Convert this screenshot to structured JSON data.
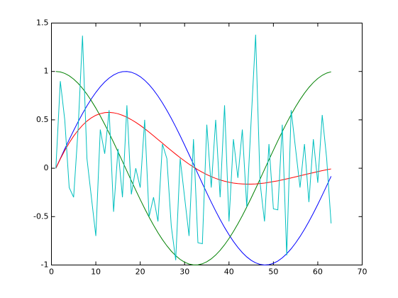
{
  "chart_data": {
    "type": "line",
    "x": [
      1,
      2,
      3,
      4,
      5,
      6,
      7,
      8,
      9,
      10,
      11,
      12,
      13,
      14,
      15,
      16,
      17,
      18,
      19,
      20,
      21,
      22,
      23,
      24,
      25,
      26,
      27,
      28,
      29,
      30,
      31,
      32,
      33,
      34,
      35,
      36,
      37,
      38,
      39,
      40,
      41,
      42,
      43,
      44,
      45,
      46,
      47,
      48,
      49,
      50,
      51,
      52,
      53,
      54,
      55,
      56,
      57,
      58,
      59,
      60,
      61,
      62,
      63
    ],
    "series": [
      {
        "color": "#0000ff",
        "values": [
          0,
          0.0998,
          0.1987,
          0.2955,
          0.3894,
          0.4794,
          0.5646,
          0.6442,
          0.7174,
          0.7833,
          0.8415,
          0.8912,
          0.932,
          0.9636,
          0.9854,
          0.9975,
          0.9996,
          0.9917,
          0.9738,
          0.9463,
          0.9093,
          0.8632,
          0.8085,
          0.7457,
          0.6755,
          0.5985,
          0.5155,
          0.4274,
          0.335,
          0.2392,
          0.1411,
          0.0416,
          -0.0584,
          -0.1577,
          -0.2555,
          -0.3508,
          -0.4425,
          -0.5298,
          -0.6119,
          -0.6878,
          -0.7568,
          -0.8183,
          -0.8716,
          -0.9162,
          -0.9516,
          -0.9775,
          -0.9937,
          -0.9999,
          -0.9962,
          -0.9825,
          -0.9589,
          -0.9258,
          -0.8835,
          -0.8323,
          -0.7728,
          -0.7055,
          -0.6313,
          -0.5507,
          -0.4646,
          -0.3739,
          -0.2794,
          -0.1822,
          -0.0831
        ]
      },
      {
        "color": "#008000",
        "values": [
          1,
          0.995,
          0.9801,
          0.9553,
          0.9211,
          0.8776,
          0.8253,
          0.7648,
          0.6967,
          0.6216,
          0.5403,
          0.4536,
          0.3624,
          0.2675,
          0.17,
          0.0707,
          -0.0292,
          -0.1288,
          -0.2272,
          -0.3233,
          -0.4161,
          -0.5048,
          -0.5885,
          -0.6663,
          -0.7374,
          -0.8011,
          -0.8569,
          -0.9041,
          -0.9422,
          -0.971,
          -0.99,
          -0.9991,
          -0.9983,
          -0.9875,
          -0.9668,
          -0.9365,
          -0.8968,
          -0.8481,
          -0.791,
          -0.7259,
          -0.6536,
          -0.5748,
          -0.4903,
          -0.4008,
          -0.3073,
          -0.2108,
          -0.1122,
          -0.0124,
          0.0875,
          0.1865,
          0.2837,
          0.378,
          0.4685,
          0.5544,
          0.6347,
          0.7087,
          0.7756,
          0.8347,
          0.8855,
          0.9275,
          0.9602,
          0.9833,
          0.9965
        ]
      },
      {
        "color": "#ff0000",
        "values": [
          0,
          0.096,
          0.183,
          0.262,
          0.332,
          0.392,
          0.444,
          0.487,
          0.521,
          0.547,
          0.564,
          0.574,
          0.577,
          0.573,
          0.563,
          0.547,
          0.527,
          0.502,
          0.474,
          0.443,
          0.409,
          0.373,
          0.335,
          0.297,
          0.259,
          0.22,
          0.182,
          0.145,
          0.109,
          0.075,
          0.042,
          0.012,
          -0.016,
          -0.042,
          -0.066,
          -0.087,
          -0.105,
          -0.121,
          -0.134,
          -0.145,
          -0.153,
          -0.159,
          -0.162,
          -0.164,
          -0.164,
          -0.162,
          -0.158,
          -0.153,
          -0.146,
          -0.138,
          -0.13,
          -0.12,
          -0.11,
          -0.1,
          -0.089,
          -0.078,
          -0.067,
          -0.056,
          -0.046,
          -0.035,
          -0.025,
          -0.016,
          -0.007
        ]
      },
      {
        "color": "#00bfbf",
        "values": [
          0,
          0.9,
          0.5,
          -0.2,
          -0.3,
          0.4,
          1.37,
          0.1,
          -0.3,
          -0.7,
          0.4,
          0.15,
          0.6,
          -0.45,
          0.2,
          -0.3,
          0.65,
          -0.27,
          0,
          -0.2,
          0.5,
          -0.5,
          -0.3,
          -0.55,
          0.25,
          0.1,
          -0.6,
          -0.95,
          0.1,
          -0.3,
          -0.7,
          0.3,
          -0.77,
          -0.78,
          0.45,
          -0.2,
          0.5,
          -0.3,
          0.65,
          -0.55,
          0.3,
          -0.1,
          0.4,
          -0.4,
          0.5,
          1.38,
          -0.15,
          -0.55,
          0.25,
          -0.42,
          -0.43,
          0.45,
          -0.9,
          0.6,
          0.2,
          -0.2,
          0.25,
          -0.35,
          0.3,
          -0.15,
          0.55,
          0.1,
          -0.57
        ]
      }
    ],
    "xlim": [
      0,
      70
    ],
    "xticks": [
      0,
      10,
      20,
      30,
      40,
      50,
      60,
      70
    ],
    "ylim": [
      -1,
      1.5
    ],
    "yticks": [
      -1,
      -0.5,
      0,
      0.5,
      1,
      1.5
    ],
    "grid": false
  }
}
